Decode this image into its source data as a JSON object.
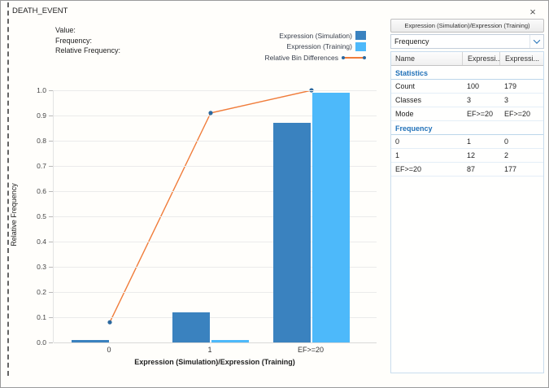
{
  "window": {
    "title": "DEATH_EVENT"
  },
  "icons": {
    "close": "×"
  },
  "info_labels": [
    "Value:",
    "Frequency:",
    "Relative Frequency:"
  ],
  "legend": [
    {
      "label": "Expression (Simulation)",
      "type": "swatch",
      "color": "#3a82bf"
    },
    {
      "label": "Expression (Training)",
      "type": "swatch",
      "color": "#4db9fa"
    },
    {
      "label": "Relative Bin Differences",
      "type": "line",
      "color": "#f07c3a"
    }
  ],
  "chart_data": {
    "type": "bar",
    "categories": [
      "0",
      "1",
      "EF>=20"
    ],
    "series": [
      {
        "name": "Expression (Simulation)",
        "type": "bar",
        "color": "#3a82bf",
        "values": [
          0.01,
          0.12,
          0.87
        ]
      },
      {
        "name": "Expression (Training)",
        "type": "bar",
        "color": "#4db9fa",
        "values": [
          0.0,
          0.01,
          0.99
        ]
      },
      {
        "name": "Relative Bin Differences",
        "type": "line",
        "color": "#f07c3a",
        "marker_color": "#2c699f",
        "values": [
          0.08,
          0.91,
          1.0
        ]
      }
    ],
    "title": "",
    "xlabel": "Expression (Simulation)/Expression (Training)",
    "ylabel": "Relative Frequency",
    "ylim": [
      0.0,
      1.0
    ],
    "ytick_labels": [
      "0.0",
      "0.1",
      "0.2",
      "0.3",
      "0.4",
      "0.5",
      "0.6",
      "0.7",
      "0.8",
      "0.9",
      "1.0"
    ],
    "grid": true,
    "legend_position": "top-right"
  },
  "panel": {
    "header": "Expression (Simulation)/Expression (Training)",
    "dropdown_value": "Frequency",
    "columns": [
      "Name",
      "Expressi...",
      "Expressi..."
    ],
    "sections": [
      {
        "title": "Statistics",
        "rows": [
          [
            "Count",
            "100",
            "179"
          ],
          [
            "Classes",
            "3",
            "3"
          ],
          [
            "Mode",
            "EF>=20",
            "EF>=20"
          ]
        ]
      },
      {
        "title": "Frequency",
        "rows": [
          [
            "0",
            "1",
            "0"
          ],
          [
            "1",
            "12",
            "2"
          ],
          [
            "EF>=20",
            "87",
            "177"
          ]
        ]
      }
    ]
  }
}
